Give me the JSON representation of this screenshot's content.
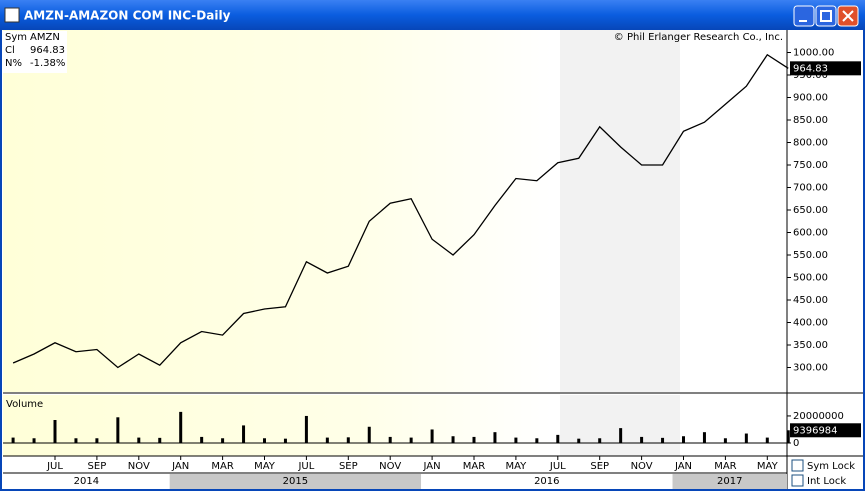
{
  "window": {
    "title": "AMZN-AMAZON COM INC-Daily"
  },
  "info": {
    "rows": [
      [
        "Sym",
        "AMZN"
      ],
      [
        "Cl",
        "964.83"
      ],
      [
        "N%",
        "-1.38%"
      ]
    ]
  },
  "copyright": "© Phil Erlanger Research Co., Inc.",
  "checkboxes": [
    "Sym Lock",
    "Int Lock"
  ],
  "years": [
    "2014",
    "2015",
    "2016",
    "2017"
  ],
  "chart_data": [
    {
      "type": "line",
      "x": [
        "2014-05",
        "2014-06",
        "2014-07",
        "2014-08",
        "2014-09",
        "2014-10",
        "2014-11",
        "2014-12",
        "2015-01",
        "2015-02",
        "2015-03",
        "2015-04",
        "2015-05",
        "2015-06",
        "2015-07",
        "2015-08",
        "2015-09",
        "2015-10",
        "2015-11",
        "2015-12",
        "2016-01",
        "2016-02",
        "2016-03",
        "2016-04",
        "2016-05",
        "2016-06",
        "2016-07",
        "2016-08",
        "2016-09",
        "2016-10",
        "2016-11",
        "2016-12",
        "2017-01",
        "2017-02",
        "2017-03",
        "2017-04",
        "2017-05",
        "2017-06"
      ],
      "values": [
        310,
        330,
        355,
        335,
        340,
        300,
        330,
        305,
        355,
        380,
        372,
        420,
        430,
        435,
        535,
        510,
        525,
        625,
        665,
        675,
        585,
        550,
        595,
        660,
        720,
        715,
        755,
        765,
        835,
        790,
        750,
        750,
        825,
        845,
        885,
        925,
        995,
        964.83
      ],
      "color": "#000000",
      "last_value": 964.83,
      "ylim": [
        250,
        1050
      ],
      "yticks": [
        {
          "value": 1000,
          "label": "1000.00"
        },
        {
          "value": 950,
          "label": "950.00"
        },
        {
          "value": 900,
          "label": "900.00"
        },
        {
          "value": 850,
          "label": "850.00"
        },
        {
          "value": 800,
          "label": "800.00"
        },
        {
          "value": 750,
          "label": "750.00"
        },
        {
          "value": 700,
          "label": "700.00"
        },
        {
          "value": 650,
          "label": "650.00"
        },
        {
          "value": 600,
          "label": "600.00"
        },
        {
          "value": 550,
          "label": "550.00"
        },
        {
          "value": 500,
          "label": "500.00"
        },
        {
          "value": 450,
          "label": "450.00"
        },
        {
          "value": 400,
          "label": "400.00"
        },
        {
          "value": 350,
          "label": "350.00"
        },
        {
          "value": 300,
          "label": "300.00"
        }
      ],
      "xticks": [
        {
          "value": "2014-07",
          "label": "JUL"
        },
        {
          "value": "2014-09",
          "label": "SEP"
        },
        {
          "value": "2014-11",
          "label": "NOV"
        },
        {
          "value": "2015-01",
          "label": "JAN"
        },
        {
          "value": "2015-03",
          "label": "MAR"
        },
        {
          "value": "2015-05",
          "label": "MAY"
        },
        {
          "value": "2015-07",
          "label": "JUL"
        },
        {
          "value": "2015-09",
          "label": "SEP"
        },
        {
          "value": "2015-11",
          "label": "NOV"
        },
        {
          "value": "2016-01",
          "label": "JAN"
        },
        {
          "value": "2016-03",
          "label": "MAR"
        },
        {
          "value": "2016-05",
          "label": "MAY"
        },
        {
          "value": "2016-07",
          "label": "JUL"
        },
        {
          "value": "2016-09",
          "label": "SEP"
        },
        {
          "value": "2016-11",
          "label": "NOV"
        },
        {
          "value": "2017-01",
          "label": "JAN"
        },
        {
          "value": "2017-03",
          "label": "MAR"
        },
        {
          "value": "2017-05",
          "label": "MAY"
        }
      ]
    },
    {
      "type": "bar",
      "title": "Volume",
      "x": [
        "2014-05",
        "2014-06",
        "2014-07",
        "2014-08",
        "2014-09",
        "2014-10",
        "2014-11",
        "2014-12",
        "2015-01",
        "2015-02",
        "2015-03",
        "2015-04",
        "2015-05",
        "2015-06",
        "2015-07",
        "2015-08",
        "2015-09",
        "2015-10",
        "2015-11",
        "2015-12",
        "2016-01",
        "2016-02",
        "2016-03",
        "2016-04",
        "2016-05",
        "2016-06",
        "2016-07",
        "2016-08",
        "2016-09",
        "2016-10",
        "2016-11",
        "2016-12",
        "2017-01",
        "2017-02",
        "2017-03",
        "2017-04",
        "2017-05",
        "2017-06"
      ],
      "values": [
        4000000,
        3500000,
        17000000,
        3500000,
        3500000,
        19000000,
        4000000,
        3800000,
        23000000,
        4500000,
        3500000,
        13000000,
        3500000,
        3200000,
        20000000,
        4000000,
        4200000,
        12000000,
        4500000,
        4000000,
        10000000,
        5000000,
        4500000,
        8000000,
        4000000,
        3500000,
        6000000,
        3200000,
        3500000,
        11000000,
        4500000,
        3800000,
        5000000,
        8000000,
        3500000,
        7000000,
        4000000,
        9396984
      ],
      "color": "#000000",
      "last_value": 9396984,
      "ylim": [
        0,
        34000000
      ],
      "yticks": [
        0,
        20000000
      ]
    }
  ]
}
